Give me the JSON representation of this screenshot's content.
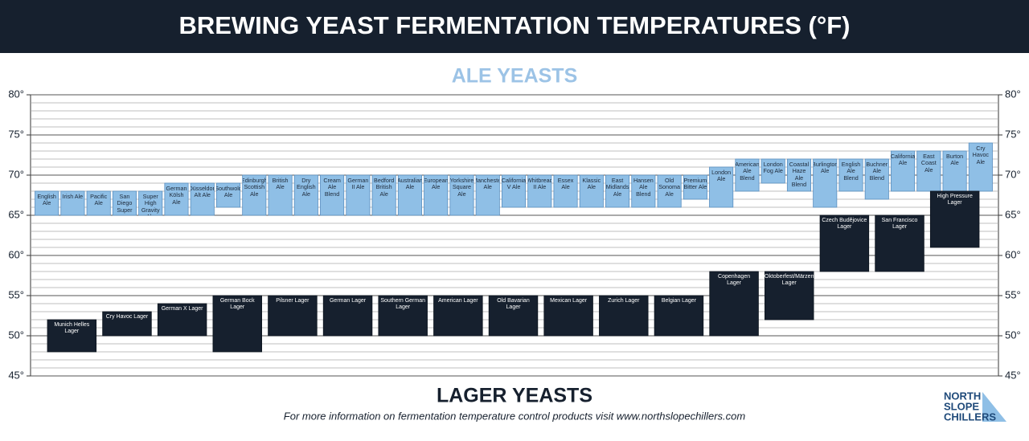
{
  "chart_data": {
    "type": "range-bar",
    "title": "BREWING YEAST FERMENTATION TEMPERATURES (°F)",
    "footer": "For more information on fermentation temperature control products visit www.northslopechillers.com",
    "logo": [
      "NORTH",
      "SLOPE",
      "CHILLERS"
    ],
    "ylim": [
      45,
      80
    ],
    "yticks": [
      {
        "value": 45,
        "label": "45°"
      },
      {
        "value": 50,
        "label": "50°"
      },
      {
        "value": 55,
        "label": "55°"
      },
      {
        "value": 60,
        "label": "60°"
      },
      {
        "value": 65,
        "label": "65°"
      },
      {
        "value": 70,
        "label": "70°"
      },
      {
        "value": 75,
        "label": "75°"
      },
      {
        "value": 80,
        "label": "80°"
      }
    ],
    "minor_yticks": [
      46,
      47,
      48,
      49,
      51,
      52,
      53,
      54,
      56,
      57,
      58,
      59,
      61,
      62,
      63,
      64,
      66,
      67,
      68,
      69,
      71,
      72,
      73,
      74,
      76,
      77,
      78,
      79
    ],
    "grid": true,
    "series": [
      {
        "name": "ALE YEASTS",
        "color": "#8fbfe6",
        "categories": [
          "English Ale",
          "Irish Ale",
          "Pacific Ale",
          "San Diego Super",
          "Super High Gravity Ale",
          "German Kölsh Ale",
          "Düsseldorf Alt Ale",
          "Southwold Ale",
          "Edinburgh Scottish Ale",
          "British Ale",
          "Dry English Ale",
          "Cream Ale Blend",
          "German II Ale",
          "Bedford British Ale",
          "Australian Ale",
          "European Ale",
          "Yorkshire Square Ale",
          "Manchester Ale",
          "California V Ale",
          "Whitbread II Ale",
          "Essex Ale",
          "Klassic Ale",
          "East Midlands Ale",
          "Hansen Ale Blend",
          "Old Sonoma Ale",
          "Premium Bitter Ale",
          "London Ale",
          "American Ale Blend",
          "London Fog Ale",
          "Coastal Haze Ale Blend",
          "Burlington Ale",
          "English Ale Blend",
          "Buchner Ale Blend",
          "California Ale",
          "East Coast Ale",
          "Burton Ale",
          "Cry Havoc Ale"
        ],
        "values": [
          [
            65,
            68
          ],
          [
            65,
            68
          ],
          [
            65,
            68
          ],
          [
            65,
            68
          ],
          [
            65,
            68
          ],
          [
            65,
            69
          ],
          [
            65,
            69
          ],
          [
            66,
            69
          ],
          [
            65,
            70
          ],
          [
            65,
            70
          ],
          [
            65,
            70
          ],
          [
            65,
            70
          ],
          [
            65,
            70
          ],
          [
            65,
            70
          ],
          [
            65,
            70
          ],
          [
            65,
            70
          ],
          [
            65,
            70
          ],
          [
            65,
            70
          ],
          [
            66,
            70
          ],
          [
            66,
            70
          ],
          [
            66,
            70
          ],
          [
            66,
            70
          ],
          [
            66,
            70
          ],
          [
            66,
            70
          ],
          [
            66,
            70
          ],
          [
            67,
            70
          ],
          [
            66,
            71
          ],
          [
            68,
            72
          ],
          [
            69,
            72
          ],
          [
            68,
            72
          ],
          [
            66,
            72
          ],
          [
            68,
            72
          ],
          [
            67,
            72
          ],
          [
            68,
            73
          ],
          [
            68,
            73
          ],
          [
            68,
            73
          ],
          [
            68,
            74
          ]
        ]
      },
      {
        "name": "LAGER YEASTS",
        "color": "#16202e",
        "categories": [
          "Munich Helles Lager",
          "Cry Havoc Lager",
          "German X Lager",
          "German Bock Lager",
          "Pilsner Lager",
          "German Lager",
          "Southern German Lager",
          "American Lager",
          "Old Bavarian Lager",
          "Mexican Lager",
          "Zurich Lager",
          "Belgian Lager",
          "Copenhagen Lager",
          "Oktoberfest/Märzen Lager",
          "Czech Budějovice Lager",
          "San Francisco Lager",
          "High Pressure Lager"
        ],
        "values": [
          [
            48,
            52
          ],
          [
            50,
            53
          ],
          [
            50,
            54
          ],
          [
            48,
            55
          ],
          [
            50,
            55
          ],
          [
            50,
            55
          ],
          [
            50,
            55
          ],
          [
            50,
            55
          ],
          [
            50,
            55
          ],
          [
            50,
            55
          ],
          [
            50,
            55
          ],
          [
            50,
            55
          ],
          [
            50,
            58
          ],
          [
            52,
            58
          ],
          [
            58,
            65
          ],
          [
            58,
            65
          ],
          [
            61,
            68
          ]
        ]
      }
    ]
  }
}
